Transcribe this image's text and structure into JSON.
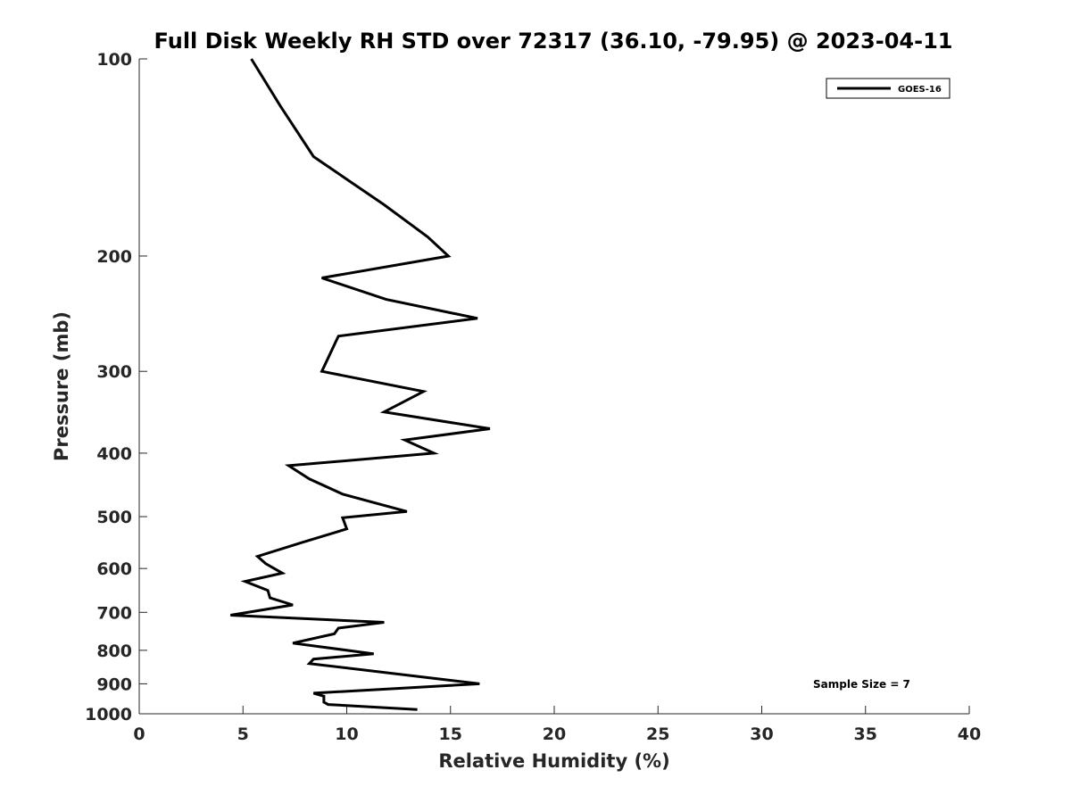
{
  "chart_data": {
    "type": "line",
    "title": "Full Disk Weekly RH STD over 72317 (36.10, -79.95) @ 2023-04-11",
    "xlabel": "Relative Humidity (%)",
    "ylabel": "Pressure (mb)",
    "xlim": [
      0,
      40
    ],
    "ylim": [
      1000,
      100
    ],
    "yscale": "log",
    "grid": false,
    "legend_position": "top-right",
    "xticks": [
      0,
      5,
      10,
      15,
      20,
      25,
      30,
      35,
      40
    ],
    "xtick_labels": [
      "0",
      "5",
      "10",
      "15",
      "20",
      "25",
      "30",
      "35",
      "40"
    ],
    "yticks": [
      100,
      200,
      300,
      400,
      500,
      600,
      700,
      800,
      900,
      1000
    ],
    "ytick_labels": [
      "100",
      "200",
      "300",
      "400",
      "500",
      "600",
      "700",
      "800",
      "900",
      "1000"
    ],
    "series": [
      {
        "name": "GOES-16",
        "color": "#000000",
        "points": [
          [
            5.4,
            100
          ],
          [
            6.8,
            118
          ],
          [
            8.4,
            141
          ],
          [
            11.8,
            167
          ],
          [
            13.9,
            187
          ],
          [
            14.9,
            200
          ],
          [
            8.8,
            216
          ],
          [
            11.9,
            233
          ],
          [
            16.3,
            249
          ],
          [
            9.6,
            265
          ],
          [
            8.8,
            300
          ],
          [
            13.7,
            322
          ],
          [
            11.8,
            346
          ],
          [
            16.9,
            367
          ],
          [
            12.8,
            382
          ],
          [
            14.2,
            400
          ],
          [
            7.2,
            418
          ],
          [
            8.2,
            438
          ],
          [
            9.8,
            462
          ],
          [
            12.9,
            491
          ],
          [
            9.8,
            502
          ],
          [
            10.0,
            522
          ],
          [
            7.8,
            548
          ],
          [
            5.7,
            575
          ],
          [
            6.1,
            590
          ],
          [
            6.9,
            610
          ],
          [
            5.1,
            628
          ],
          [
            6.2,
            648
          ],
          [
            6.3,
            665
          ],
          [
            7.4,
            682
          ],
          [
            4.4,
            707
          ],
          [
            11.8,
            725
          ],
          [
            9.6,
            740
          ],
          [
            9.4,
            755
          ],
          [
            7.4,
            780
          ],
          [
            11.3,
            810
          ],
          [
            8.4,
            825
          ],
          [
            8.2,
            838
          ],
          [
            16.4,
            900
          ],
          [
            8.4,
            930
          ],
          [
            8.9,
            940
          ],
          [
            8.9,
            960
          ],
          [
            9.1,
            968
          ],
          [
            13.4,
            985
          ]
        ]
      }
    ],
    "annotations": [
      "Sample Size = 7"
    ]
  }
}
